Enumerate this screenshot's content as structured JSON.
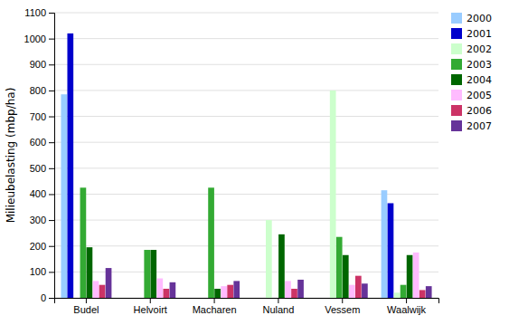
{
  "chart_data": {
    "type": "bar",
    "categories": [
      "Budel",
      "Helvoirt",
      "Macharen",
      "Nuland",
      "Vessem",
      "Waalwijk"
    ],
    "series": [
      {
        "name": "2000",
        "color": "#99ccff",
        "values": [
          785,
          0,
          0,
          0,
          0,
          415
        ]
      },
      {
        "name": "2001",
        "color": "#0000cc",
        "values": [
          1020,
          0,
          0,
          0,
          0,
          365
        ]
      },
      {
        "name": "2002",
        "color": "#ccffcc",
        "values": [
          0,
          0,
          0,
          300,
          800,
          20
        ]
      },
      {
        "name": "2003",
        "color": "#33aa33",
        "values": [
          425,
          185,
          425,
          0,
          235,
          50
        ]
      },
      {
        "name": "2004",
        "color": "#006600",
        "values": [
          195,
          185,
          35,
          245,
          165,
          165
        ]
      },
      {
        "name": "2005",
        "color": "#ffbbff",
        "values": [
          65,
          75,
          45,
          65,
          50,
          175
        ]
      },
      {
        "name": "2006",
        "color": "#cc3366",
        "values": [
          50,
          35,
          50,
          35,
          85,
          30
        ]
      },
      {
        "name": "2007",
        "color": "#663399",
        "values": [
          115,
          60,
          65,
          70,
          55,
          45
        ]
      }
    ],
    "ylabel": "Milieubelasting (mbp/ha)",
    "ylim": [
      0,
      1100
    ],
    "yticks": [
      0,
      100,
      200,
      300,
      400,
      500,
      600,
      700,
      800,
      900,
      1000,
      1100
    ],
    "grid": true,
    "legend": "right"
  }
}
